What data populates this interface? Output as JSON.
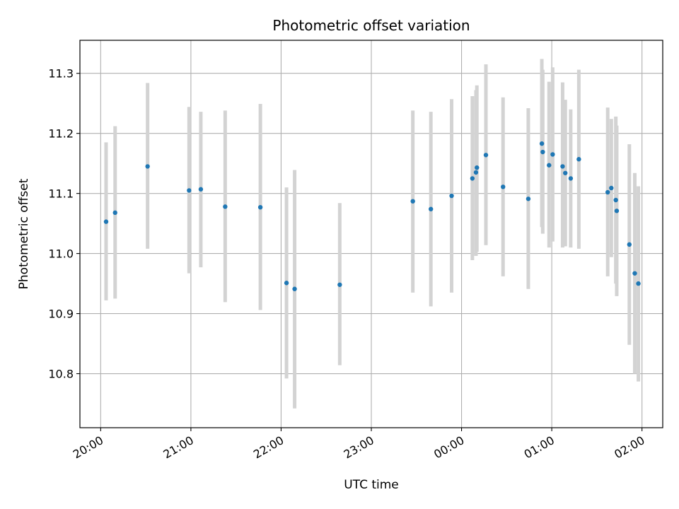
{
  "chart_data": {
    "type": "scatter",
    "title": "Photometric offset variation",
    "xlabel": "UTC time",
    "ylabel": "Photometric offset",
    "x_unit": "hours since 20:00 UTC",
    "xlim": [
      -0.23,
      6.23
    ],
    "ylim": [
      10.71,
      11.355
    ],
    "x_ticks": [
      {
        "value": 0,
        "label": "20:00"
      },
      {
        "value": 1,
        "label": "21:00"
      },
      {
        "value": 2,
        "label": "22:00"
      },
      {
        "value": 3,
        "label": "23:00"
      },
      {
        "value": 4,
        "label": "00:00"
      },
      {
        "value": 5,
        "label": "01:00"
      },
      {
        "value": 6,
        "label": "02:00"
      }
    ],
    "y_ticks": [
      {
        "value": 10.8,
        "label": "10.8"
      },
      {
        "value": 10.9,
        "label": "10.9"
      },
      {
        "value": 11.0,
        "label": "11.0"
      },
      {
        "value": 11.1,
        "label": "11.1"
      },
      {
        "value": 11.2,
        "label": "11.2"
      },
      {
        "value": 11.3,
        "label": "11.3"
      }
    ],
    "grid": true,
    "marker_color": "#1f77b4",
    "errorbar_color": "#d3d3d3",
    "points": [
      {
        "x": 0.06,
        "y": 11.053,
        "lo": 10.922,
        "hi": 11.185
      },
      {
        "x": 0.16,
        "y": 11.068,
        "lo": 10.925,
        "hi": 11.212
      },
      {
        "x": 0.52,
        "y": 11.145,
        "lo": 11.008,
        "hi": 11.284
      },
      {
        "x": 0.98,
        "y": 11.105,
        "lo": 10.967,
        "hi": 11.244
      },
      {
        "x": 1.11,
        "y": 11.107,
        "lo": 10.977,
        "hi": 11.236
      },
      {
        "x": 1.38,
        "y": 11.078,
        "lo": 10.919,
        "hi": 11.238
      },
      {
        "x": 1.77,
        "y": 11.077,
        "lo": 10.906,
        "hi": 11.249
      },
      {
        "x": 2.06,
        "y": 10.951,
        "lo": 10.792,
        "hi": 11.11
      },
      {
        "x": 2.15,
        "y": 10.941,
        "lo": 10.742,
        "hi": 11.139
      },
      {
        "x": 2.65,
        "y": 10.948,
        "lo": 10.814,
        "hi": 11.084
      },
      {
        "x": 3.46,
        "y": 11.087,
        "lo": 10.935,
        "hi": 11.238
      },
      {
        "x": 3.66,
        "y": 11.074,
        "lo": 10.912,
        "hi": 11.236
      },
      {
        "x": 3.89,
        "y": 11.096,
        "lo": 10.935,
        "hi": 11.257
      },
      {
        "x": 4.12,
        "y": 11.125,
        "lo": 10.989,
        "hi": 11.262
      },
      {
        "x": 4.16,
        "y": 11.135,
        "lo": 10.996,
        "hi": 11.272
      },
      {
        "x": 4.17,
        "y": 11.143,
        "lo": 11.003,
        "hi": 11.28
      },
      {
        "x": 4.27,
        "y": 11.164,
        "lo": 11.014,
        "hi": 11.315
      },
      {
        "x": 4.46,
        "y": 11.111,
        "lo": 10.962,
        "hi": 11.26
      },
      {
        "x": 4.74,
        "y": 11.091,
        "lo": 10.941,
        "hi": 11.242
      },
      {
        "x": 4.89,
        "y": 11.183,
        "lo": 11.044,
        "hi": 11.324
      },
      {
        "x": 4.9,
        "y": 11.169,
        "lo": 11.033,
        "hi": 11.306
      },
      {
        "x": 4.97,
        "y": 11.147,
        "lo": 11.01,
        "hi": 11.286
      },
      {
        "x": 5.01,
        "y": 11.165,
        "lo": 11.02,
        "hi": 11.31
      },
      {
        "x": 5.12,
        "y": 11.145,
        "lo": 11.01,
        "hi": 11.285
      },
      {
        "x": 5.15,
        "y": 11.134,
        "lo": 11.012,
        "hi": 11.256
      },
      {
        "x": 5.21,
        "y": 11.125,
        "lo": 11.01,
        "hi": 11.24
      },
      {
        "x": 5.3,
        "y": 11.157,
        "lo": 11.008,
        "hi": 11.306
      },
      {
        "x": 5.62,
        "y": 11.102,
        "lo": 10.962,
        "hi": 11.243
      },
      {
        "x": 5.66,
        "y": 11.109,
        "lo": 10.994,
        "hi": 11.224
      },
      {
        "x": 5.71,
        "y": 11.089,
        "lo": 10.95,
        "hi": 11.228
      },
      {
        "x": 5.72,
        "y": 11.071,
        "lo": 10.929,
        "hi": 11.213
      },
      {
        "x": 5.86,
        "y": 11.015,
        "lo": 10.848,
        "hi": 11.182
      },
      {
        "x": 5.92,
        "y": 10.967,
        "lo": 10.8,
        "hi": 11.134
      },
      {
        "x": 5.96,
        "y": 10.95,
        "lo": 10.787,
        "hi": 11.112
      }
    ]
  }
}
